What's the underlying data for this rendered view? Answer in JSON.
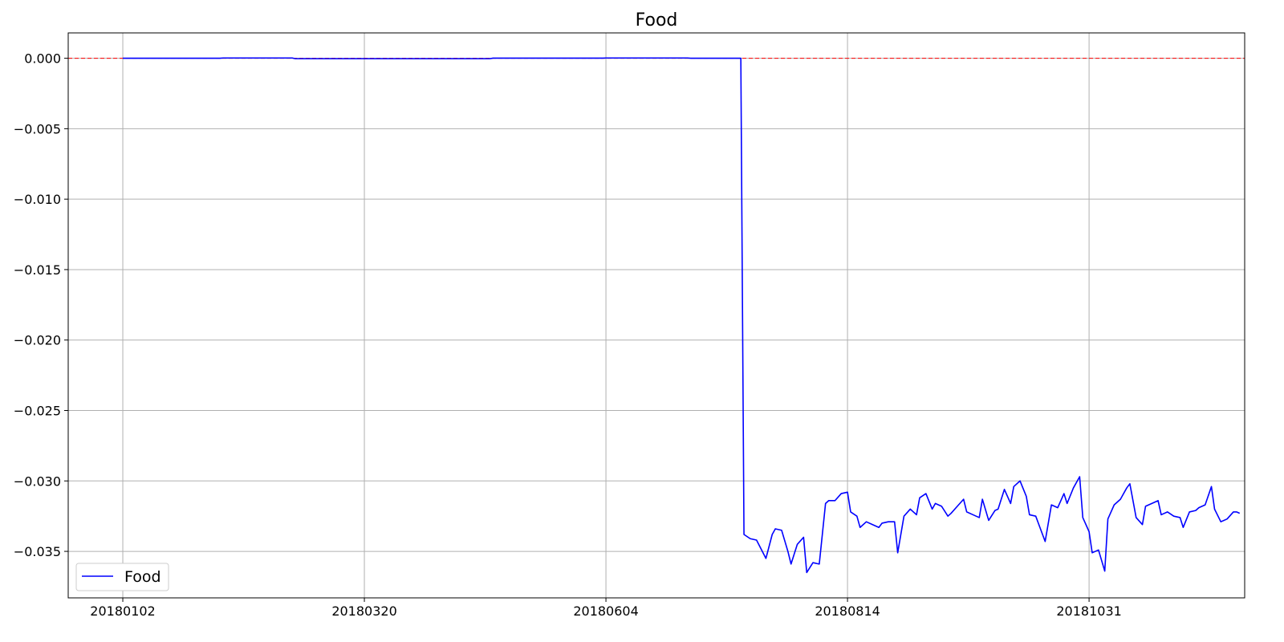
{
  "chart_data": {
    "type": "line",
    "title": "Food",
    "xlabel": "",
    "ylabel": "",
    "x_ticks": [
      "20180102",
      "20180320",
      "20180604",
      "20180814",
      "20181031"
    ],
    "y_ticks": [
      "0.000",
      "−0.005",
      "−0.010",
      "−0.015",
      "−0.020",
      "−0.025",
      "−0.030",
      "−0.035"
    ],
    "y_tick_values": [
      0.0,
      -0.005,
      -0.01,
      -0.015,
      -0.02,
      -0.025,
      -0.03,
      -0.035
    ],
    "ylim": [
      -0.0383,
      0.0018
    ],
    "x_index_range": [
      -17.4,
      357.6
    ],
    "x_tick_index": [
      0,
      77,
      154,
      231,
      308
    ],
    "grid": true,
    "reference_line": {
      "y": 0.0,
      "color": "#ff0000",
      "style": "dashed"
    },
    "legend": {
      "position": "lower-left",
      "entries": [
        "Food"
      ]
    },
    "series": [
      {
        "name": "Food",
        "color": "#0000ff",
        "points": [
          [
            0,
            0.0
          ],
          [
            31,
            0.0
          ],
          [
            32,
            2e-05
          ],
          [
            54,
            2e-05
          ],
          [
            55,
            -3e-05
          ],
          [
            117,
            -3e-05
          ],
          [
            118,
            1e-05
          ],
          [
            153,
            1e-05
          ],
          [
            154,
            2e-05
          ],
          [
            180,
            2e-05
          ],
          [
            181,
            0.0
          ],
          [
            197,
            0.0
          ],
          [
            198,
            -0.0338
          ],
          [
            200,
            -0.0341
          ],
          [
            202,
            -0.0342
          ],
          [
            205,
            -0.0355
          ],
          [
            207,
            -0.0338
          ],
          [
            208,
            -0.0334
          ],
          [
            210,
            -0.0335
          ],
          [
            212,
            -0.035
          ],
          [
            213,
            -0.0359
          ],
          [
            215,
            -0.0345
          ],
          [
            217,
            -0.034
          ],
          [
            218,
            -0.0365
          ],
          [
            220,
            -0.0358
          ],
          [
            222,
            -0.0359
          ],
          [
            224,
            -0.0316
          ],
          [
            225,
            -0.0314
          ],
          [
            227,
            -0.0314
          ],
          [
            229,
            -0.0309
          ],
          [
            231,
            -0.0308
          ],
          [
            232,
            -0.0322
          ],
          [
            234,
            -0.0325
          ],
          [
            235,
            -0.0333
          ],
          [
            237,
            -0.0329
          ],
          [
            239,
            -0.0331
          ],
          [
            241,
            -0.0333
          ],
          [
            242,
            -0.033
          ],
          [
            244,
            -0.0329
          ],
          [
            246,
            -0.0329
          ],
          [
            247,
            -0.0351
          ],
          [
            249,
            -0.0325
          ],
          [
            251,
            -0.032
          ],
          [
            253,
            -0.0324
          ],
          [
            254,
            -0.0312
          ],
          [
            256,
            -0.0309
          ],
          [
            258,
            -0.032
          ],
          [
            259,
            -0.0316
          ],
          [
            261,
            -0.0318
          ],
          [
            263,
            -0.0325
          ],
          [
            264,
            -0.0323
          ],
          [
            266,
            -0.0318
          ],
          [
            268,
            -0.0313
          ],
          [
            269,
            -0.0322
          ],
          [
            271,
            -0.0324
          ],
          [
            273,
            -0.0326
          ],
          [
            274,
            -0.0313
          ],
          [
            276,
            -0.0328
          ],
          [
            278,
            -0.0321
          ],
          [
            279,
            -0.032
          ],
          [
            281,
            -0.0306
          ],
          [
            283,
            -0.0316
          ],
          [
            284,
            -0.0304
          ],
          [
            286,
            -0.03
          ],
          [
            288,
            -0.0311
          ],
          [
            289,
            -0.0324
          ],
          [
            291,
            -0.0325
          ],
          [
            293,
            -0.0337
          ],
          [
            294,
            -0.0343
          ],
          [
            296,
            -0.0317
          ],
          [
            298,
            -0.0319
          ],
          [
            300,
            -0.0309
          ],
          [
            301,
            -0.0316
          ],
          [
            303,
            -0.0305
          ],
          [
            305,
            -0.0297
          ],
          [
            306,
            -0.0326
          ],
          [
            308,
            -0.0336
          ],
          [
            309,
            -0.0351
          ],
          [
            311,
            -0.0349
          ],
          [
            313,
            -0.0364
          ],
          [
            314,
            -0.0327
          ],
          [
            316,
            -0.0317
          ],
          [
            318,
            -0.0313
          ],
          [
            320,
            -0.0305
          ],
          [
            321,
            -0.0302
          ],
          [
            323,
            -0.0326
          ],
          [
            325,
            -0.0331
          ],
          [
            326,
            -0.0318
          ],
          [
            328,
            -0.0316
          ],
          [
            330,
            -0.0314
          ],
          [
            331,
            -0.0324
          ],
          [
            333,
            -0.0322
          ],
          [
            335,
            -0.0325
          ],
          [
            337,
            -0.0326
          ],
          [
            338,
            -0.0333
          ],
          [
            340,
            -0.0322
          ],
          [
            342,
            -0.0321
          ],
          [
            343,
            -0.0319
          ],
          [
            345,
            -0.0317
          ],
          [
            347,
            -0.0304
          ],
          [
            348,
            -0.032
          ],
          [
            350,
            -0.0329
          ],
          [
            352,
            -0.0327
          ],
          [
            354,
            -0.0322
          ],
          [
            355,
            -0.0322
          ],
          [
            356,
            -0.0323
          ]
        ]
      }
    ]
  }
}
